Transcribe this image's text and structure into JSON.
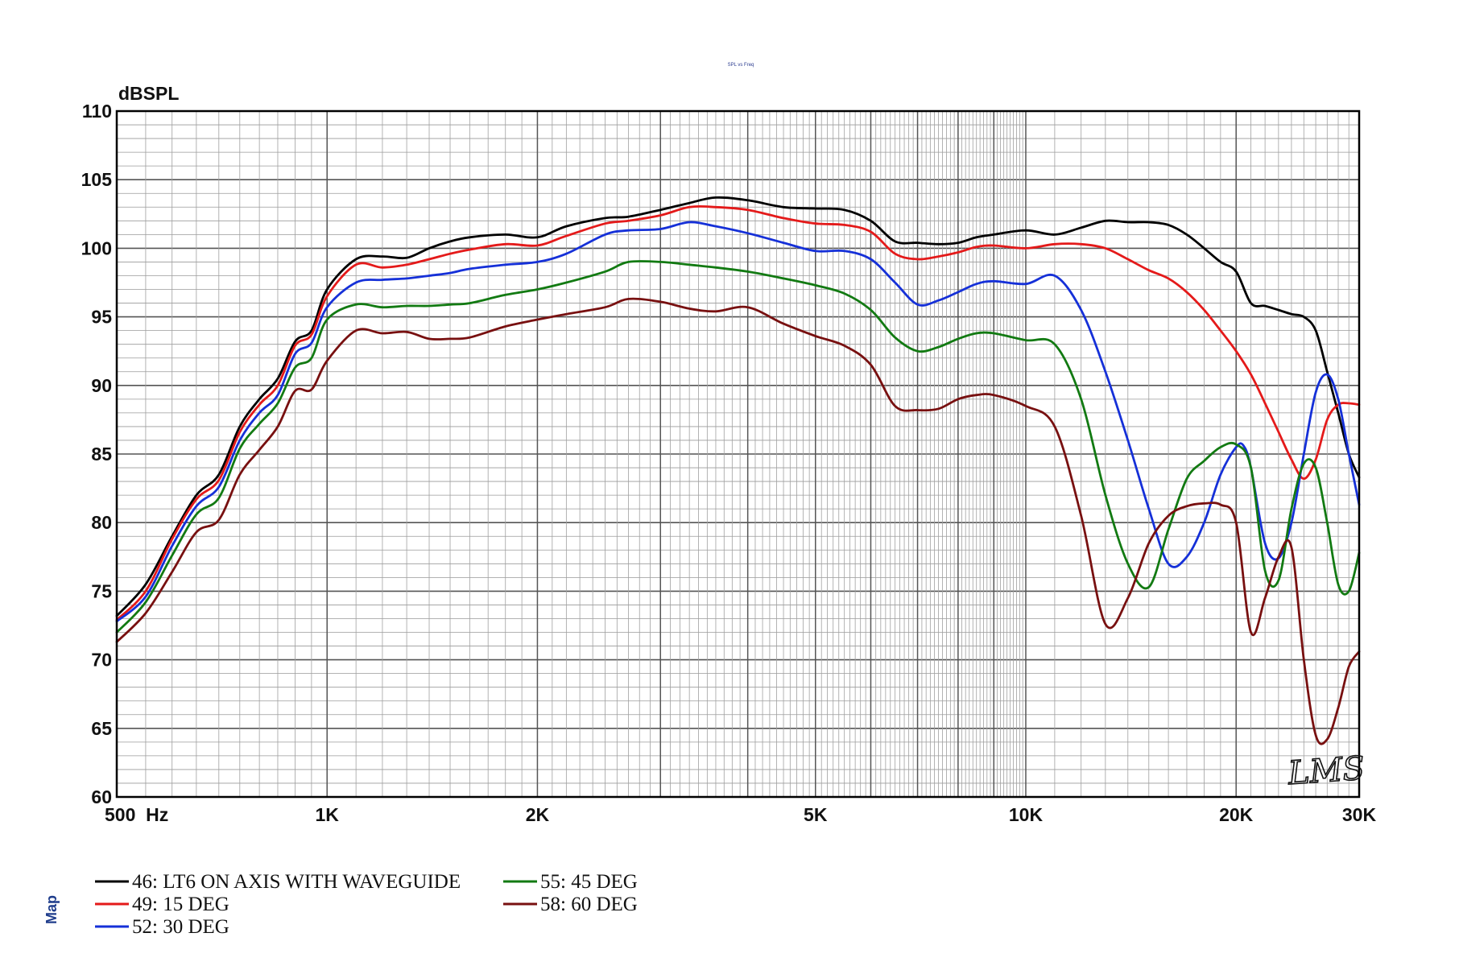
{
  "chart_data": {
    "type": "line",
    "title": "SPL vs Freq",
    "ylabel": "dBSPL",
    "x_scale": "log",
    "xlim": [
      500,
      30000
    ],
    "ylim": [
      60,
      110
    ],
    "grid": true,
    "y_ticks": [
      "60",
      "65",
      "70",
      "75",
      "80",
      "85",
      "90",
      "95",
      "100",
      "105",
      "110"
    ],
    "x_ticks": [
      {
        "value": 500,
        "label": "500  Hz"
      },
      {
        "value": 1000,
        "label": "1K"
      },
      {
        "value": 2000,
        "label": "2K"
      },
      {
        "value": 5000,
        "label": "5K"
      },
      {
        "value": 10000,
        "label": "10K"
      },
      {
        "value": 20000,
        "label": "20K"
      },
      {
        "value": 30000,
        "label": "30K"
      }
    ],
    "legend_placement": "bottom-left",
    "series": [
      {
        "name": "46: LT6 ON AXIS WITH WAVEGUIDE",
        "color": "#000000",
        "x": [
          500,
          550,
          600,
          650,
          700,
          750,
          800,
          850,
          900,
          950,
          1000,
          1100,
          1200,
          1300,
          1400,
          1500,
          1600,
          1800,
          2000,
          2200,
          2500,
          2700,
          3000,
          3300,
          3600,
          4000,
          4500,
          5000,
          5500,
          6000,
          6500,
          7000,
          7500,
          8000,
          8500,
          9000,
          10000,
          11000,
          12000,
          13000,
          14000,
          15000,
          16000,
          17000,
          18000,
          19000,
          20000,
          21000,
          22000,
          23000,
          24000,
          25000,
          26000,
          27000,
          28000,
          29000,
          30000
        ],
        "y": [
          73.2,
          75.5,
          79.0,
          82.0,
          83.5,
          87.0,
          89.0,
          90.5,
          93.2,
          94.0,
          97.0,
          99.2,
          99.4,
          99.3,
          100.0,
          100.5,
          100.8,
          101.0,
          100.8,
          101.6,
          102.2,
          102.3,
          102.8,
          103.3,
          103.7,
          103.5,
          103.0,
          102.9,
          102.8,
          102.0,
          100.5,
          100.4,
          100.3,
          100.4,
          100.8,
          101.0,
          101.3,
          101.0,
          101.5,
          102.0,
          101.9,
          101.9,
          101.7,
          101.0,
          100.0,
          99.0,
          98.3,
          96.0,
          95.8,
          95.5,
          95.2,
          95.0,
          94.0,
          91.0,
          88.0,
          85.0,
          83.3
        ]
      },
      {
        "name": "49: 15 DEG",
        "color": "#e41a1a",
        "x": [
          500,
          550,
          600,
          650,
          700,
          750,
          800,
          850,
          900,
          950,
          1000,
          1100,
          1200,
          1300,
          1400,
          1500,
          1600,
          1800,
          2000,
          2200,
          2500,
          2700,
          3000,
          3300,
          3600,
          4000,
          4500,
          5000,
          5500,
          6000,
          6500,
          7000,
          7500,
          8000,
          8500,
          9000,
          10000,
          11000,
          12000,
          13000,
          14000,
          15000,
          16000,
          17000,
          18000,
          19000,
          20000,
          21000,
          22000,
          23000,
          24000,
          25000,
          26000,
          27000,
          28000,
          29000,
          30000
        ],
        "y": [
          72.9,
          75.0,
          78.8,
          81.7,
          83.1,
          86.6,
          88.6,
          90.0,
          92.9,
          93.7,
          96.5,
          98.8,
          98.6,
          98.8,
          99.2,
          99.6,
          99.9,
          100.3,
          100.2,
          100.9,
          101.8,
          102.0,
          102.4,
          103.0,
          103.0,
          102.8,
          102.2,
          101.8,
          101.7,
          101.2,
          99.6,
          99.2,
          99.4,
          99.7,
          100.1,
          100.2,
          100.0,
          100.3,
          100.3,
          100.0,
          99.2,
          98.4,
          97.8,
          96.8,
          95.5,
          94.0,
          92.5,
          90.8,
          88.7,
          86.6,
          84.6,
          83.2,
          84.6,
          87.5,
          88.6,
          88.7,
          88.6
        ]
      },
      {
        "name": "52: 30 DEG",
        "color": "#1530d8",
        "x": [
          500,
          550,
          600,
          650,
          700,
          750,
          800,
          850,
          900,
          950,
          1000,
          1100,
          1200,
          1300,
          1400,
          1500,
          1600,
          1800,
          2000,
          2200,
          2500,
          2700,
          3000,
          3300,
          3600,
          4000,
          4500,
          5000,
          5500,
          6000,
          6500,
          7000,
          7500,
          8000,
          8500,
          9000,
          10000,
          11000,
          12000,
          13000,
          14000,
          15000,
          16000,
          17000,
          18000,
          19000,
          20000,
          20500,
          21000,
          22000,
          23000,
          24000,
          25000,
          26000,
          27000,
          28000,
          29000,
          30000
        ],
        "y": [
          72.8,
          74.6,
          78.3,
          81.2,
          82.6,
          86.0,
          88.0,
          89.3,
          92.3,
          93.1,
          95.7,
          97.5,
          97.7,
          97.8,
          98.0,
          98.2,
          98.5,
          98.8,
          99.0,
          99.6,
          101.0,
          101.3,
          101.4,
          101.9,
          101.6,
          101.1,
          100.4,
          99.8,
          99.8,
          99.2,
          97.5,
          95.9,
          96.2,
          96.8,
          97.4,
          97.6,
          97.4,
          98.0,
          95.5,
          91.0,
          86.0,
          81.0,
          77.0,
          77.5,
          80.0,
          83.5,
          85.5,
          85.6,
          84.0,
          78.5,
          77.4,
          80.0,
          85.0,
          89.5,
          90.8,
          89.0,
          85.0,
          81.3
        ]
      },
      {
        "name": "55: 45 DEG",
        "color": "#127a12",
        "x": [
          500,
          550,
          600,
          650,
          700,
          750,
          800,
          850,
          900,
          950,
          1000,
          1100,
          1200,
          1300,
          1400,
          1500,
          1600,
          1800,
          2000,
          2200,
          2500,
          2700,
          3000,
          3300,
          3600,
          4000,
          4500,
          5000,
          5500,
          6000,
          6500,
          7000,
          7500,
          8000,
          8500,
          9000,
          10000,
          11000,
          12000,
          13000,
          14000,
          15000,
          16000,
          17000,
          18000,
          19000,
          20000,
          21000,
          22000,
          23000,
          24000,
          25000,
          26000,
          27000,
          28000,
          29000,
          30000
        ],
        "y": [
          72.0,
          74.2,
          77.6,
          80.6,
          81.8,
          85.4,
          87.2,
          88.7,
          91.3,
          92.0,
          94.8,
          95.9,
          95.7,
          95.8,
          95.8,
          95.9,
          96.0,
          96.6,
          97.0,
          97.5,
          98.3,
          99.0,
          99.0,
          98.8,
          98.6,
          98.3,
          97.8,
          97.3,
          96.7,
          95.5,
          93.5,
          92.5,
          92.8,
          93.4,
          93.8,
          93.8,
          93.3,
          93.0,
          89.0,
          82.0,
          77.0,
          75.3,
          79.5,
          83.2,
          84.5,
          85.5,
          85.7,
          84.0,
          76.5,
          75.8,
          81.0,
          84.3,
          84.0,
          80.0,
          75.5,
          75.0,
          77.8
        ]
      },
      {
        "name": "58: 60 DEG",
        "color": "#781010",
        "x": [
          500,
          550,
          600,
          650,
          700,
          750,
          800,
          850,
          900,
          950,
          1000,
          1100,
          1200,
          1300,
          1400,
          1500,
          1600,
          1800,
          2000,
          2200,
          2500,
          2700,
          3000,
          3300,
          3600,
          4000,
          4500,
          5000,
          5500,
          6000,
          6500,
          7000,
          7500,
          8000,
          8500,
          9000,
          10000,
          11000,
          12000,
          13000,
          14000,
          15000,
          16000,
          17000,
          18000,
          19000,
          20000,
          21000,
          22000,
          23000,
          24000,
          25000,
          26000,
          27000,
          28000,
          29000,
          30000
        ],
        "y": [
          71.3,
          73.4,
          76.4,
          79.3,
          80.2,
          83.5,
          85.3,
          87.0,
          89.6,
          89.7,
          91.8,
          94.0,
          93.8,
          93.9,
          93.4,
          93.4,
          93.5,
          94.3,
          94.8,
          95.2,
          95.7,
          96.3,
          96.1,
          95.6,
          95.4,
          95.7,
          94.5,
          93.6,
          92.9,
          91.5,
          88.5,
          88.2,
          88.3,
          89.0,
          89.3,
          89.3,
          88.5,
          87.0,
          80.5,
          72.6,
          74.5,
          78.5,
          80.5,
          81.2,
          81.4,
          81.3,
          80.0,
          72.0,
          74.5,
          77.5,
          78.2,
          70.0,
          64.5,
          64.2,
          66.5,
          69.5,
          70.6
        ]
      }
    ],
    "logo_text": "LMS",
    "side_label": "Map"
  }
}
